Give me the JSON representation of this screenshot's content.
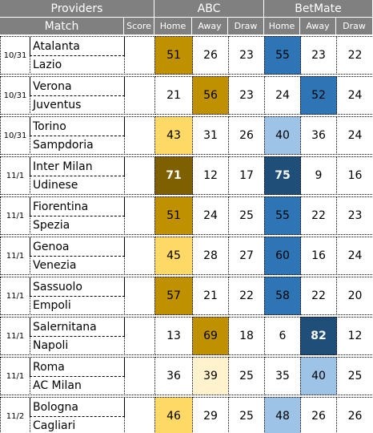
{
  "header": {
    "providers": "Providers",
    "abc": "ABC",
    "betmate": "BetMate",
    "match": "Match",
    "score": "Score",
    "columns": [
      "Home",
      "Away",
      "Draw",
      "Home",
      "Away",
      "Draw"
    ]
  },
  "rows": [
    {
      "date": "10/31",
      "home": "Atalanta",
      "away": "Lazio",
      "odds": [
        51,
        26,
        23,
        55,
        23,
        22
      ],
      "fills": [
        "#bf9000",
        null,
        null,
        "#2e75b6",
        null,
        null
      ]
    },
    {
      "date": "10/31",
      "home": "Verona",
      "away": "Juventus",
      "odds": [
        21,
        56,
        23,
        24,
        52,
        24
      ],
      "fills": [
        null,
        "#bf9000",
        null,
        null,
        "#2e75b6",
        null
      ]
    },
    {
      "date": "10/31",
      "home": "Torino",
      "away": "Sampdoria",
      "odds": [
        43,
        31,
        26,
        40,
        36,
        24
      ],
      "fills": [
        "#ffd966",
        null,
        null,
        "#9dc3e6",
        null,
        null
      ]
    },
    {
      "date": "11/1",
      "home": "Inter Milan",
      "away": "Udinese",
      "odds": [
        71,
        12,
        17,
        75,
        9,
        16
      ],
      "fills": [
        "#7f6000",
        null,
        null,
        "#1f4e79",
        null,
        null
      ]
    },
    {
      "date": "11/1",
      "home": "Fiorentina",
      "away": "Spezia",
      "odds": [
        51,
        24,
        25,
        55,
        22,
        23
      ],
      "fills": [
        "#bf9000",
        null,
        null,
        "#2e75b6",
        null,
        null
      ]
    },
    {
      "date": "11/1",
      "home": "Genoa",
      "away": "Venezia",
      "odds": [
        45,
        28,
        27,
        60,
        16,
        24
      ],
      "fills": [
        "#ffd966",
        null,
        null,
        "#2e75b6",
        null,
        null
      ]
    },
    {
      "date": "11/1",
      "home": "Sassuolo",
      "away": "Empoli",
      "odds": [
        57,
        21,
        22,
        58,
        22,
        20
      ],
      "fills": [
        "#bf9000",
        null,
        null,
        "#2e75b6",
        null,
        null
      ]
    },
    {
      "date": "11/1",
      "home": "Salernitana",
      "away": "Napoli",
      "odds": [
        13,
        69,
        18,
        6,
        82,
        12
      ],
      "fills": [
        null,
        "#bf9000",
        null,
        null,
        "#1f4e79",
        null
      ]
    },
    {
      "date": "11/1",
      "home": "Roma",
      "away": "AC Milan",
      "odds": [
        36,
        39,
        25,
        35,
        40,
        25
      ],
      "fills": [
        null,
        "#fff2cc",
        null,
        null,
        "#9dc3e6",
        null
      ]
    },
    {
      "date": "11/2",
      "home": "Bologna",
      "away": "Cagliari",
      "odds": [
        46,
        29,
        25,
        48,
        26,
        26
      ],
      "fills": [
        "#ffd966",
        null,
        null,
        "#9dc3e6",
        null,
        null
      ]
    }
  ]
}
